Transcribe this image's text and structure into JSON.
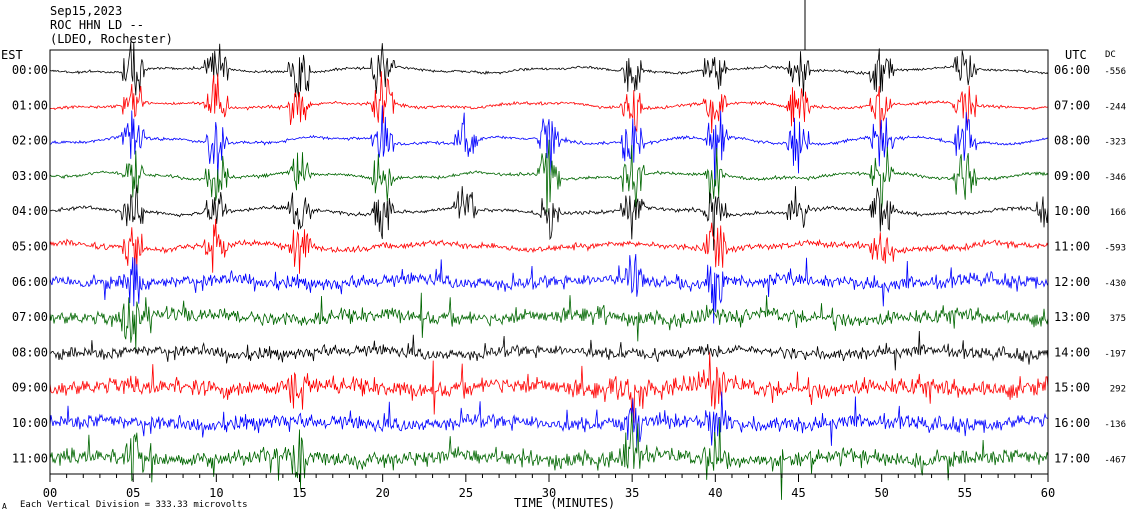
{
  "header": {
    "date": "Sep15,2023",
    "station": "ROC HHN LD --",
    "source": "(LDEO, Rochester)"
  },
  "left_axis_title": "EST",
  "right_axis_title": "UTC",
  "dc_title": "DC",
  "footer": {
    "mark": "A",
    "note": "Each Vertical Division = 333.33 microvolts"
  },
  "colors": {
    "black": "#000000",
    "red": "#ff0000",
    "blue": "#0000ff",
    "green": "#006600"
  },
  "chart_data": {
    "type": "line",
    "title": "",
    "xlabel": "TIME (MINUTES)",
    "ylabel": "",
    "x_ticks": [
      "00",
      "05",
      "10",
      "15",
      "20",
      "25",
      "30",
      "35",
      "40",
      "45",
      "50",
      "55",
      "60"
    ],
    "xlim": [
      0,
      60
    ],
    "series": [
      {
        "est": "00:00",
        "utc": "06:00",
        "dc": "-556",
        "color": "black",
        "noise": 0.18,
        "wander": 0.3,
        "spikes": [
          5,
          10,
          15,
          20,
          35,
          40,
          45,
          50,
          55
        ]
      },
      {
        "est": "01:00",
        "utc": "07:00",
        "dc": "-244",
        "color": "red",
        "noise": 0.22,
        "wander": 0.3,
        "spikes": [
          5,
          10,
          15,
          20,
          35,
          40,
          45,
          50,
          55
        ]
      },
      {
        "est": "02:00",
        "utc": "08:00",
        "dc": "-323",
        "color": "blue",
        "noise": 0.22,
        "wander": 0.4,
        "spikes": [
          5,
          10,
          20,
          25,
          30,
          35,
          40,
          45,
          50,
          55
        ]
      },
      {
        "est": "03:00",
        "utc": "09:00",
        "dc": "-346",
        "color": "green",
        "noise": 0.22,
        "wander": 0.35,
        "spikes": [
          5,
          10,
          15,
          20,
          30,
          35,
          40,
          50,
          55
        ]
      },
      {
        "est": "04:00",
        "utc": "10:00",
        "dc": "166",
        "color": "black",
        "noise": 0.25,
        "wander": 0.35,
        "spikes": [
          5,
          10,
          15,
          20,
          25,
          30,
          35,
          40,
          45,
          50,
          60
        ]
      },
      {
        "est": "05:00",
        "utc": "11:00",
        "dc": "-593",
        "color": "red",
        "noise": 0.45,
        "wander": 0.35,
        "spikes": [
          5,
          10,
          15,
          40,
          50
        ]
      },
      {
        "est": "06:00",
        "utc": "12:00",
        "dc": "-430",
        "color": "blue",
        "noise": 0.9,
        "wander": 0.3,
        "spikes": [
          5,
          35,
          40
        ]
      },
      {
        "est": "07:00",
        "utc": "13:00",
        "dc": "375",
        "color": "green",
        "noise": 1.0,
        "wander": 0.3,
        "spikes": [
          5
        ]
      },
      {
        "est": "08:00",
        "utc": "14:00",
        "dc": "-197",
        "color": "black",
        "noise": 0.8,
        "wander": 0.3,
        "spikes": []
      },
      {
        "est": "09:00",
        "utc": "15:00",
        "dc": "292",
        "color": "red",
        "noise": 1.2,
        "wander": 0.3,
        "spikes": [
          15,
          35,
          40
        ]
      },
      {
        "est": "10:00",
        "utc": "16:00",
        "dc": "-136",
        "color": "blue",
        "noise": 1.0,
        "wander": 0.3,
        "spikes": [
          35,
          40
        ]
      },
      {
        "est": "11:00",
        "utc": "17:00",
        "dc": "-467",
        "color": "green",
        "noise": 1.1,
        "wander": 0.3,
        "spikes": [
          5,
          15,
          35,
          40
        ]
      }
    ]
  }
}
